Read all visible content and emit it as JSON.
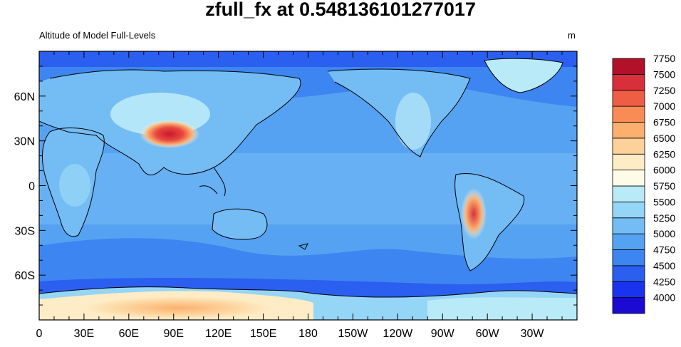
{
  "title": "zfull_fx at 0.548136101277017",
  "left_string": "Altitude of Model Full-Levels",
  "right_string": "m",
  "map": {
    "projection": "cylindrical-equidistant",
    "center_lon": 180,
    "lon_range": [
      0,
      360
    ],
    "lat_range": [
      -90,
      90
    ],
    "x_ticks": [
      "0",
      "30E",
      "60E",
      "90E",
      "120E",
      "150E",
      "180",
      "150W",
      "120W",
      "90W",
      "60W",
      "30W"
    ],
    "y_ticks": [
      "60N",
      "30N",
      "0",
      "30S",
      "60S"
    ],
    "coastlines": true
  },
  "colorbar": {
    "levels": [
      "4000",
      "4250",
      "4500",
      "4750",
      "5000",
      "5250",
      "5500",
      "5750",
      "6000",
      "6250",
      "6500",
      "6750",
      "7000",
      "7250",
      "7500",
      "7750"
    ],
    "colors": [
      "#1b0ad2",
      "#1a33ef",
      "#2a5ff0",
      "#3d85f0",
      "#56a2f2",
      "#74bcf4",
      "#95d5f6",
      "#b9eaf8",
      "#fffbe9",
      "#feecc6",
      "#fdd29a",
      "#fcb070",
      "#f98b56",
      "#ef5d45",
      "#d8303a",
      "#b2112a"
    ]
  }
}
